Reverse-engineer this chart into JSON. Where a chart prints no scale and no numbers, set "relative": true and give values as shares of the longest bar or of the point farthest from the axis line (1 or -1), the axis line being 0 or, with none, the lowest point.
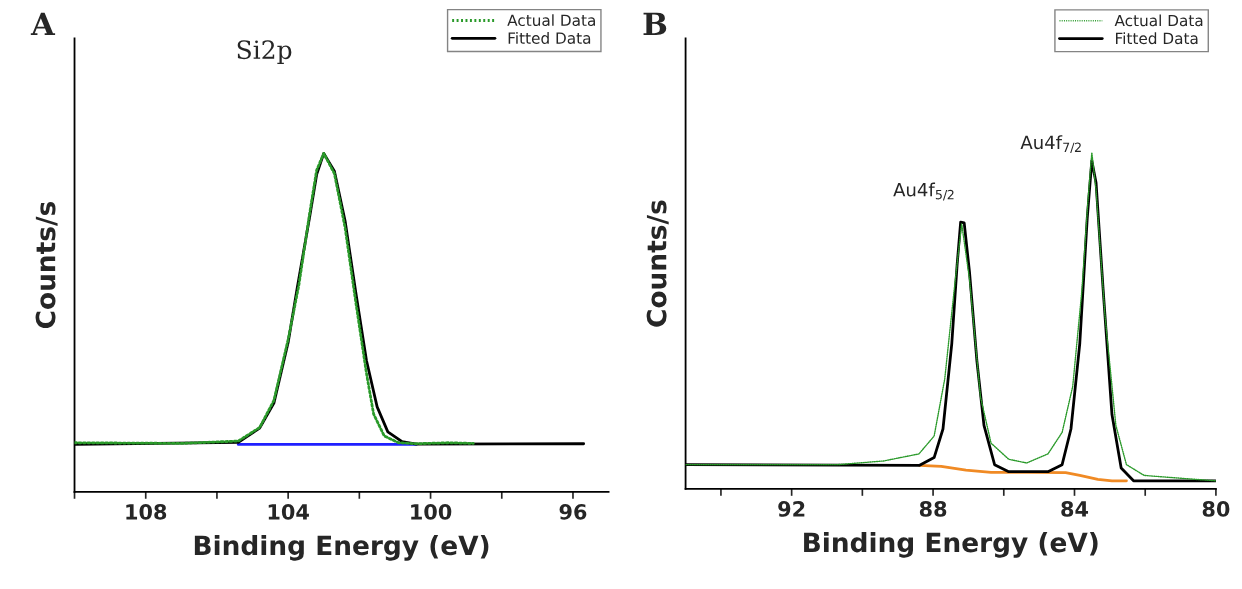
{
  "chart_data": [
    {
      "type": "line",
      "title": "A",
      "xlabel": "Binding Energy (eV)",
      "ylabel": "Counts/s",
      "relative": true,
      "xlim": [
        110,
        95
      ],
      "xticks": [
        {
          "value": 110,
          "label": null
        },
        108,
        {
          "value": 106,
          "label": null
        },
        104,
        {
          "value": 102,
          "label": null
        },
        100,
        {
          "value": 98,
          "label": null
        },
        96
      ],
      "annotations": [
        "Si2p"
      ],
      "legend": "top right",
      "grid": false,
      "series": [
        {
          "name": "Actual Data",
          "color": "#2a9a2a",
          "line_style": "dotted",
          "x": [
            110,
            107,
            105.4,
            104.8,
            104.4,
            104.0,
            103.7,
            103.4,
            103.2,
            103.0,
            102.7,
            102.4,
            102.1,
            101.8,
            101.6,
            101.3,
            100.9,
            100.4,
            99.5,
            98.8
          ],
          "values": [
            0.145,
            0.143,
            0.15,
            0.19,
            0.27,
            0.45,
            0.61,
            0.82,
            0.95,
            1.0,
            0.94,
            0.78,
            0.56,
            0.35,
            0.23,
            0.165,
            0.145,
            0.142,
            0.145,
            0.143
          ]
        },
        {
          "name": "Fitted Data",
          "color": "#000000",
          "line_style": "solid",
          "x": [
            110,
            105.4,
            104.8,
            104.4,
            104.0,
            103.75,
            103.4,
            103.2,
            103.0,
            102.7,
            102.4,
            102.1,
            101.8,
            101.5,
            101.2,
            100.8,
            100.4,
            95.7
          ],
          "values": [
            0.14,
            0.146,
            0.188,
            0.262,
            0.441,
            0.599,
            0.81,
            0.937,
            1.0,
            0.947,
            0.8,
            0.589,
            0.388,
            0.251,
            0.177,
            0.148,
            0.141,
            0.142
          ]
        },
        {
          "color": "#1f1fff",
          "line_style": "solid",
          "x": [
            105.4,
            100.4
          ],
          "values": [
            0.14,
            0.14
          ]
        }
      ]
    },
    {
      "type": "line",
      "title": "B",
      "xlabel": "Binding Energy (eV)",
      "ylabel": "Counts/s",
      "relative": true,
      "xlim": [
        95,
        80
      ],
      "xticks": [
        {
          "value": 94,
          "label": null
        },
        92,
        {
          "value": 90,
          "label": null
        },
        88,
        {
          "value": 86,
          "label": null
        },
        84,
        {
          "value": 82,
          "label": null
        },
        80
      ],
      "annotations": [
        "Au4f$_{5/2}$",
        "Au4f$_{7/2}$"
      ],
      "legend": "top right",
      "grid": false,
      "series": [
        {
          "name": "Actual Data",
          "color": "#2a9a2a",
          "line_style": "dotted",
          "x": [
            95.0,
            90.7,
            89.4,
            88.4,
            87.97,
            87.67,
            87.37,
            87.19,
            86.97,
            86.66,
            86.36,
            85.86,
            85.35,
            84.75,
            84.35,
            84.05,
            83.79,
            83.62,
            83.51,
            83.39,
            83.14,
            82.83,
            82.53,
            82.03,
            80.8,
            80.0
          ],
          "values": [
            0.072,
            0.072,
            0.083,
            0.104,
            0.157,
            0.327,
            0.624,
            0.788,
            0.624,
            0.274,
            0.136,
            0.088,
            0.077,
            0.104,
            0.168,
            0.305,
            0.591,
            0.857,
            1.0,
            0.889,
            0.518,
            0.189,
            0.072,
            0.04,
            0.03,
            0.024
          ]
        },
        {
          "name": "Fitted Data",
          "color": "#000000",
          "line_style": "solid",
          "x": [
            95.0,
            88.38,
            87.97,
            87.72,
            87.47,
            87.32,
            87.22,
            87.12,
            86.97,
            86.76,
            86.56,
            86.26,
            85.86,
            84.75,
            84.35,
            84.1,
            83.85,
            83.64,
            83.51,
            83.39,
            83.19,
            82.94,
            82.68,
            82.33,
            80.0
          ],
          "values": [
            0.072,
            0.07,
            0.093,
            0.178,
            0.433,
            0.666,
            0.793,
            0.791,
            0.645,
            0.38,
            0.189,
            0.072,
            0.051,
            0.051,
            0.072,
            0.178,
            0.433,
            0.804,
            0.976,
            0.91,
            0.593,
            0.221,
            0.062,
            0.024,
            0.024
          ]
        },
        {
          "color": "#f08a24",
          "line_style": "solid",
          "x": [
            88.38,
            87.77,
            87.07,
            86.36,
            85.35,
            84.25,
            83.85,
            83.34,
            82.94,
            82.53
          ],
          "values": [
            0.07,
            0.067,
            0.056,
            0.049,
            0.049,
            0.048,
            0.04,
            0.028,
            0.024,
            0.024
          ]
        }
      ]
    }
  ]
}
